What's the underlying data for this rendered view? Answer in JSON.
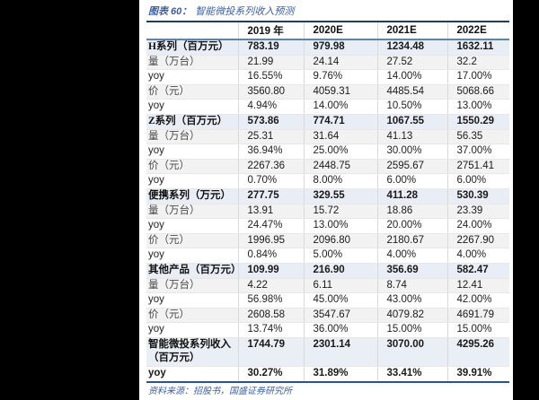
{
  "page": {
    "background_color": "#000000",
    "panel_color": "#ffffff"
  },
  "title": {
    "figure_label": "图表 60：",
    "text": "智能微投系列收入预测",
    "color": "#3a5fa8"
  },
  "table": {
    "columns": [
      "",
      "2019 年",
      "2020E",
      "2021E",
      "2022E"
    ],
    "rows": [
      {
        "label": "H系列（百万元）",
        "type": "series",
        "values": [
          "783.19",
          "979.98",
          "1234.48",
          "1632.11"
        ]
      },
      {
        "label": "量（万台）",
        "type": "sub",
        "values": [
          "21.99",
          "24.14",
          "27.52",
          "32.2"
        ]
      },
      {
        "label": "yoy",
        "type": "yoy",
        "values": [
          "16.55%",
          "9.76%",
          "14.00%",
          "17.00%"
        ]
      },
      {
        "label": "价（元）",
        "type": "sub",
        "values": [
          "3560.80",
          "4059.31",
          "4485.54",
          "5068.66"
        ]
      },
      {
        "label": "yoy",
        "type": "yoy",
        "values": [
          "4.94%",
          "14.00%",
          "10.50%",
          "13.00%"
        ]
      },
      {
        "label": "Z系列（百万元）",
        "type": "series",
        "values": [
          "573.86",
          "774.71",
          "1067.55",
          "1550.29"
        ]
      },
      {
        "label": "量（万台）",
        "type": "sub",
        "values": [
          "25.31",
          "31.64",
          "41.13",
          "56.35"
        ]
      },
      {
        "label": "yoy",
        "type": "yoy",
        "values": [
          "36.94%",
          "25.00%",
          "30.00%",
          "37.00%"
        ]
      },
      {
        "label": "价（元）",
        "type": "sub",
        "values": [
          "2267.36",
          "2448.75",
          "2595.67",
          "2751.41"
        ]
      },
      {
        "label": "yoy",
        "type": "yoy",
        "values": [
          "0.70%",
          "8.00%",
          "6.00%",
          "6.00%"
        ]
      },
      {
        "label": "便携系列（万元）",
        "type": "series",
        "values": [
          "277.75",
          "329.55",
          "411.28",
          "530.39"
        ]
      },
      {
        "label": "量（万台）",
        "type": "sub",
        "values": [
          "13.91",
          "15.72",
          "18.86",
          "23.39"
        ]
      },
      {
        "label": "yoy",
        "type": "yoy",
        "values": [
          "24.47%",
          "13.00%",
          "20.00%",
          "24.00%"
        ]
      },
      {
        "label": "价（元）",
        "type": "sub",
        "values": [
          "1996.95",
          "2096.80",
          "2180.67",
          "2267.90"
        ]
      },
      {
        "label": "yoy",
        "type": "yoy",
        "values": [
          "0.84%",
          "5.00%",
          "4.00%",
          "4.00%"
        ]
      },
      {
        "label": "其他产品（百万元）",
        "type": "series",
        "values": [
          "109.99",
          "216.90",
          "356.69",
          "582.47"
        ]
      },
      {
        "label": "量（万台）",
        "type": "sub",
        "values": [
          "4.22",
          "6.11",
          "8.74",
          "12.41"
        ]
      },
      {
        "label": "yoy",
        "type": "yoy",
        "values": [
          "56.98%",
          "45.00%",
          "43.00%",
          "42.00%"
        ]
      },
      {
        "label": "价（元）",
        "type": "sub",
        "values": [
          "2608.58",
          "3547.67",
          "4079.82",
          "4691.79"
        ]
      },
      {
        "label": "yoy",
        "type": "yoy",
        "values": [
          "13.74%",
          "36.00%",
          "15.00%",
          "15.00%"
        ]
      },
      {
        "label": "智能微投系列收入（百万元）",
        "type": "total",
        "values": [
          "1744.79",
          "2301.14",
          "3070.00",
          "4295.26"
        ]
      },
      {
        "label": "yoy",
        "type": "total-yoy",
        "values": [
          "30.27%",
          "31.89%",
          "33.41%",
          "39.91%"
        ]
      }
    ]
  },
  "source": "资料来源：招股书，国盛证券研究所",
  "colors": {
    "table_top_border": "#1e3c6e",
    "header_underline": "#5b83b8",
    "table_bottom_border": "#2a5392",
    "series_row_bg": "#e9eef6",
    "sub_row_bg": "#f2f2f2",
    "accent_blue": "#3a5fa8"
  }
}
